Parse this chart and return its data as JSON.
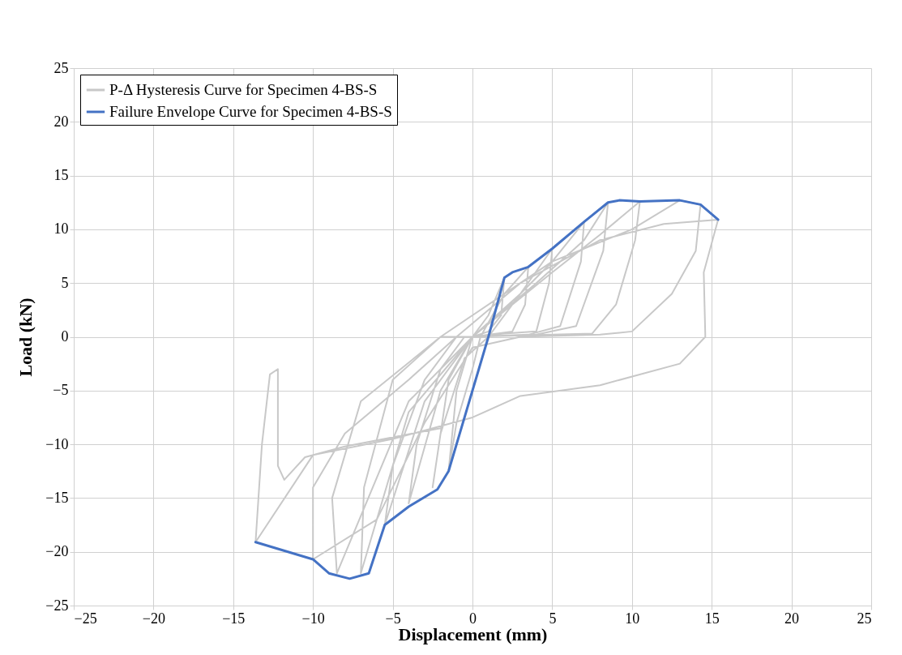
{
  "chart_data": {
    "type": "line",
    "xlabel": "Displacement (mm)",
    "ylabel": "Load (kN)",
    "xlim": [
      -25,
      25
    ],
    "xticks": [
      -25,
      -20,
      -15,
      -10,
      -5,
      0,
      5,
      10,
      15,
      20,
      25
    ],
    "ylim": [
      -25,
      25
    ],
    "yticks": [
      -25,
      -20,
      -15,
      -10,
      -5,
      0,
      5,
      10,
      15,
      20,
      25
    ],
    "grid": true,
    "legend": "top left",
    "marker": "none",
    "line_style": "solid",
    "series": [
      {
        "name": "P-Δ Hysteresis Curve for Specimen 4-BS-S",
        "color": "#c8c8c8",
        "x": [
          0,
          1,
          2,
          1.8,
          1,
          0,
          -1,
          -1.5,
          -1,
          0,
          0.5,
          2,
          3.5,
          3.3,
          2.5,
          0,
          -1.5,
          -2.5,
          -2,
          -0.5,
          1,
          3,
          5,
          4.8,
          4,
          2,
          0,
          -2,
          -4,
          -3.5,
          -2,
          -0.5,
          0,
          3,
          5,
          7,
          6.8,
          5.5,
          3.5,
          0,
          -3,
          -5.5,
          -5,
          -3,
          -1,
          0,
          4,
          7,
          8.5,
          8.2,
          6.5,
          4,
          0,
          -4,
          -7,
          -6.8,
          -5,
          -2,
          0,
          5,
          8,
          10.5,
          10.2,
          9,
          7.5,
          5,
          0,
          -4,
          -8.5,
          -8.8,
          -7,
          -2,
          5,
          10,
          13,
          14.3,
          14,
          12.5,
          10,
          8,
          3,
          0,
          -3,
          -6,
          -10,
          -10,
          -8,
          -4,
          -1,
          3,
          8,
          12,
          15.4,
          14.5,
          14.6,
          13,
          8,
          3,
          0,
          -5,
          -10,
          -13.6,
          -13.2,
          -12.7,
          -12.2,
          -12.2,
          -11.8,
          -10.5,
          -8,
          -2
        ],
        "values": [
          0,
          2,
          5.5,
          2,
          0.5,
          0,
          -5,
          -12.5,
          -8,
          -3,
          0,
          4,
          6.5,
          3,
          0.5,
          0,
          -4,
          -14,
          -9,
          -2,
          0,
          4,
          8.2,
          5,
          0.5,
          0.3,
          0,
          -5,
          -15.5,
          -10,
          -3,
          0,
          0,
          4,
          7,
          10.7,
          7,
          1,
          0.2,
          0,
          -6,
          -17.5,
          -12,
          -4,
          0,
          0,
          5,
          9,
          12.5,
          8,
          1,
          0.2,
          0,
          -7,
          -22,
          -14,
          -4,
          0,
          0,
          6,
          9.5,
          12.6,
          9,
          3,
          0.3,
          0.2,
          0,
          -6,
          -22,
          -15,
          -6,
          0,
          7,
          10,
          12.7,
          12.3,
          8,
          4,
          0.5,
          0.2,
          0,
          -1,
          -8,
          -17,
          -20.7,
          -14,
          -9,
          -4,
          0,
          5,
          9,
          10.5,
          10.9,
          6,
          0,
          -2.5,
          -4.5,
          -5.5,
          -7.5,
          -9.5,
          -11,
          -19.1,
          -10,
          -3.5,
          -3,
          -12,
          -13.3,
          -11.2,
          -10.2,
          -8.5
        ]
      },
      {
        "name": "Failure Envelope Curve for Specimen 4-BS-S",
        "color": "#4472c4",
        "x": [
          -13.6,
          -10,
          -9,
          -7.7,
          -6.5,
          -5.5,
          -4,
          -2.2,
          -1.5,
          0,
          1,
          2,
          2.5,
          3.5,
          5,
          7,
          8.5,
          9.2,
          10.5,
          13,
          14.3,
          15.4
        ],
        "values": [
          -19.1,
          -20.7,
          -22,
          -22.5,
          -22,
          -17.5,
          -15.8,
          -14.2,
          -12.5,
          -5,
          0,
          5.5,
          6,
          6.5,
          8.2,
          10.7,
          12.5,
          12.7,
          12.6,
          12.7,
          12.3,
          10.9
        ]
      }
    ]
  }
}
